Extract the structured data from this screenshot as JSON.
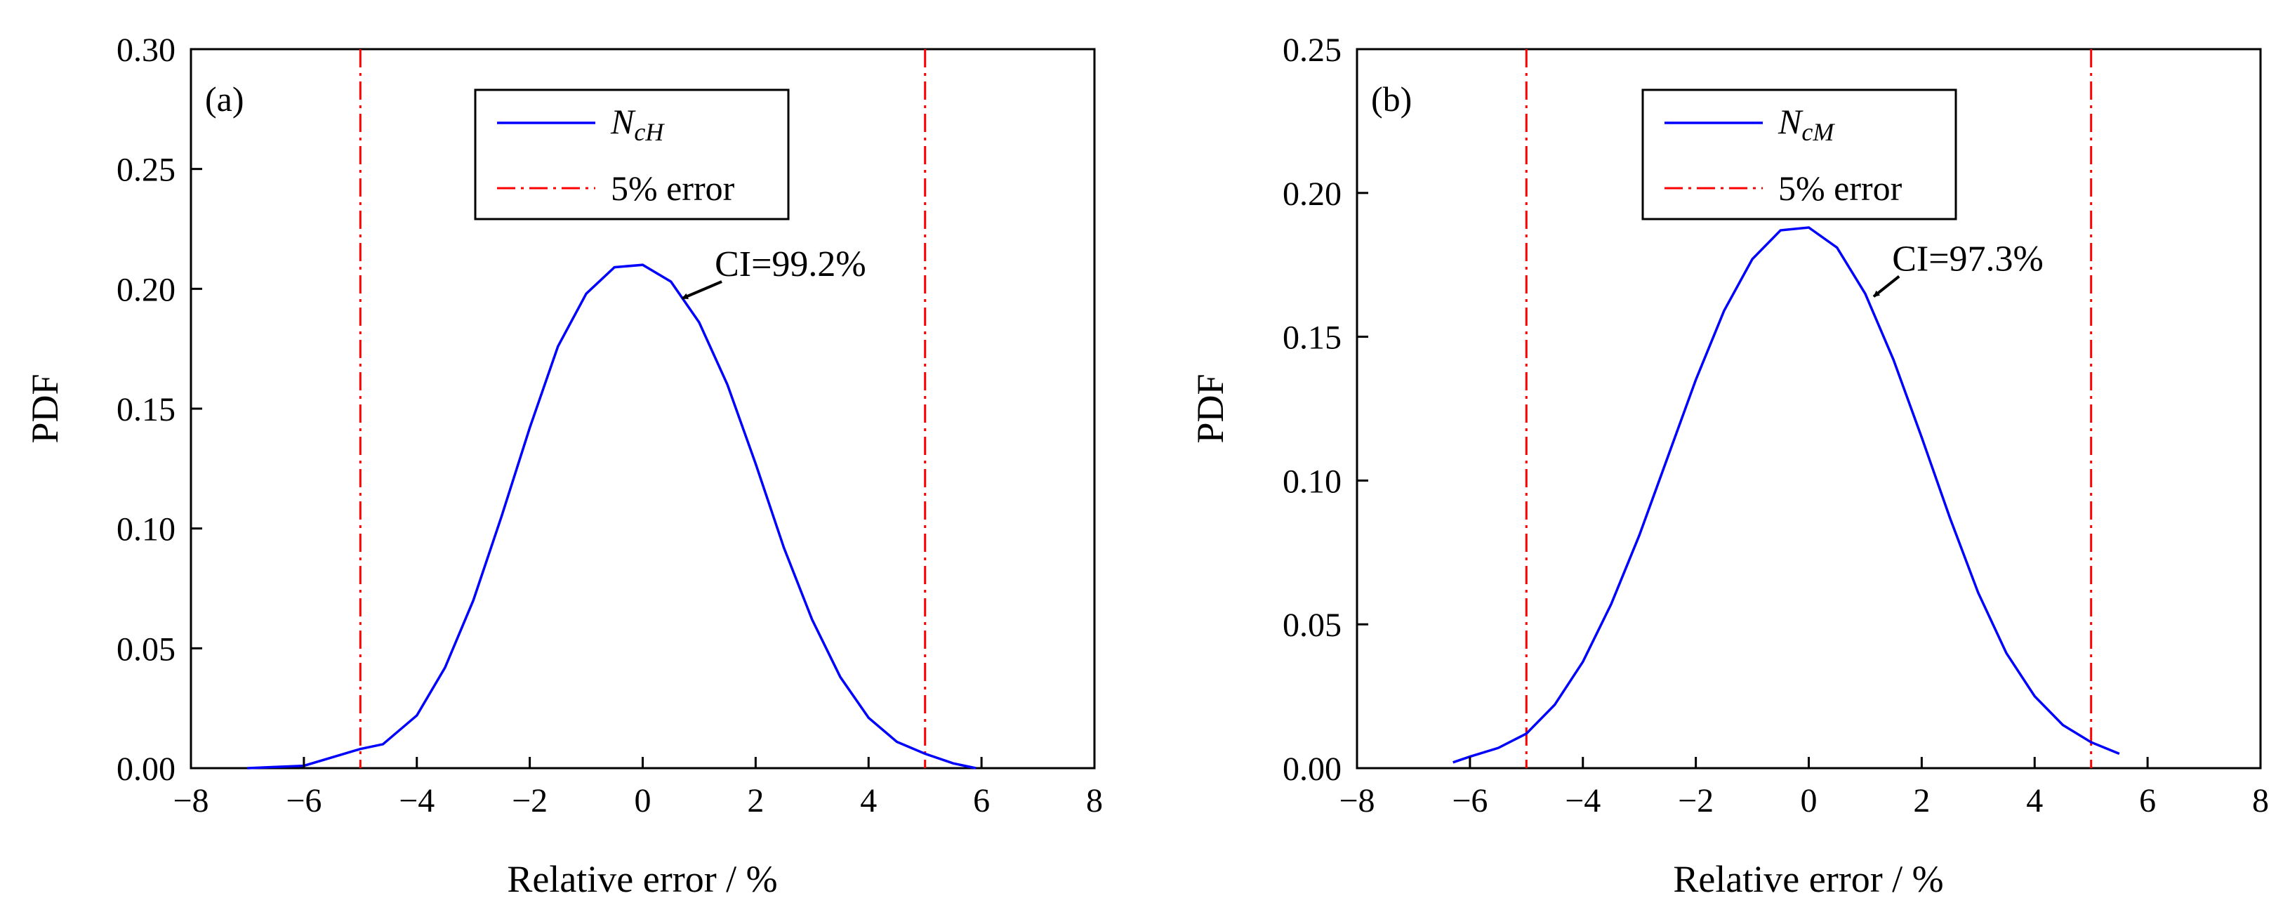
{
  "chart_data": [
    {
      "type": "line",
      "panel_label": "(a)",
      "xlabel": "Relative error / %",
      "ylabel": "PDF",
      "xlim": [
        -8,
        8
      ],
      "ylim": [
        0,
        0.3
      ],
      "xticks": [
        -8,
        -6,
        -4,
        -2,
        0,
        2,
        4,
        6,
        8
      ],
      "xtick_labels": [
        "−8",
        "−6",
        "−4",
        "−2",
        "0",
        "2",
        "4",
        "6",
        "8"
      ],
      "yticks": [
        0,
        0.05,
        0.1,
        0.15,
        0.2,
        0.25,
        0.3
      ],
      "ytick_labels": [
        "0.00",
        "0.05",
        "0.10",
        "0.15",
        "0.20",
        "0.25",
        "0.30"
      ],
      "series": [
        {
          "name": "NcH",
          "legend_main": "N",
          "legend_sub": "cH",
          "color": "#0000ff",
          "style": "solid",
          "x": [
            -7.0,
            -6.0,
            -5.0,
            -4.6,
            -4.0,
            -3.5,
            -3.0,
            -2.5,
            -2.0,
            -1.5,
            -1.0,
            -0.5,
            0.0,
            0.5,
            1.0,
            1.5,
            2.0,
            2.5,
            3.0,
            3.5,
            4.0,
            4.5,
            5.0,
            5.5,
            5.9
          ],
          "y": [
            0.0,
            0.001,
            0.008,
            0.01,
            0.022,
            0.042,
            0.07,
            0.105,
            0.142,
            0.176,
            0.198,
            0.209,
            0.21,
            0.203,
            0.186,
            0.16,
            0.127,
            0.092,
            0.062,
            0.038,
            0.021,
            0.011,
            0.006,
            0.002,
            0.0
          ]
        }
      ],
      "reference_lines": {
        "name": "5% error",
        "color": "#ff0000",
        "style": "dash-dot",
        "x": [
          -5,
          5
        ]
      },
      "annotation": {
        "text": "CI=99.2%",
        "arrow_from": [
          1.4,
          0.203
        ],
        "arrow_to": [
          0.7,
          0.196
        ]
      },
      "legend_position": "top-center"
    },
    {
      "type": "line",
      "panel_label": "(b)",
      "xlabel": "Relative error / %",
      "ylabel": "PDF",
      "xlim": [
        -8,
        8
      ],
      "ylim": [
        0,
        0.25
      ],
      "xticks": [
        -8,
        -6,
        -4,
        -2,
        0,
        2,
        4,
        6,
        8
      ],
      "xtick_labels": [
        "−8",
        "−6",
        "−4",
        "−2",
        "0",
        "2",
        "4",
        "6",
        "8"
      ],
      "yticks": [
        0,
        0.05,
        0.1,
        0.15,
        0.2,
        0.25
      ],
      "ytick_labels": [
        "0.00",
        "0.05",
        "0.10",
        "0.15",
        "0.20",
        "0.25"
      ],
      "series": [
        {
          "name": "NcM",
          "legend_main": "N",
          "legend_sub": "cM",
          "color": "#0000ff",
          "style": "solid",
          "x": [
            -6.3,
            -6.0,
            -5.5,
            -5.0,
            -4.5,
            -4.0,
            -3.5,
            -3.0,
            -2.5,
            -2.0,
            -1.5,
            -1.0,
            -0.5,
            0.0,
            0.5,
            1.0,
            1.5,
            2.0,
            2.5,
            3.0,
            3.5,
            4.0,
            4.5,
            5.0,
            5.5
          ],
          "y": [
            0.002,
            0.004,
            0.007,
            0.012,
            0.022,
            0.037,
            0.057,
            0.081,
            0.108,
            0.135,
            0.159,
            0.177,
            0.187,
            0.188,
            0.181,
            0.165,
            0.142,
            0.115,
            0.087,
            0.061,
            0.04,
            0.025,
            0.015,
            0.009,
            0.005
          ]
        }
      ],
      "reference_lines": {
        "name": "5% error",
        "color": "#ff0000",
        "style": "dash-dot",
        "x": [
          -5,
          5
        ]
      },
      "annotation": {
        "text": "CI=97.3%",
        "arrow_from": [
          1.6,
          0.171
        ],
        "arrow_to": [
          1.15,
          0.164
        ]
      },
      "legend_position": "top-center"
    }
  ]
}
